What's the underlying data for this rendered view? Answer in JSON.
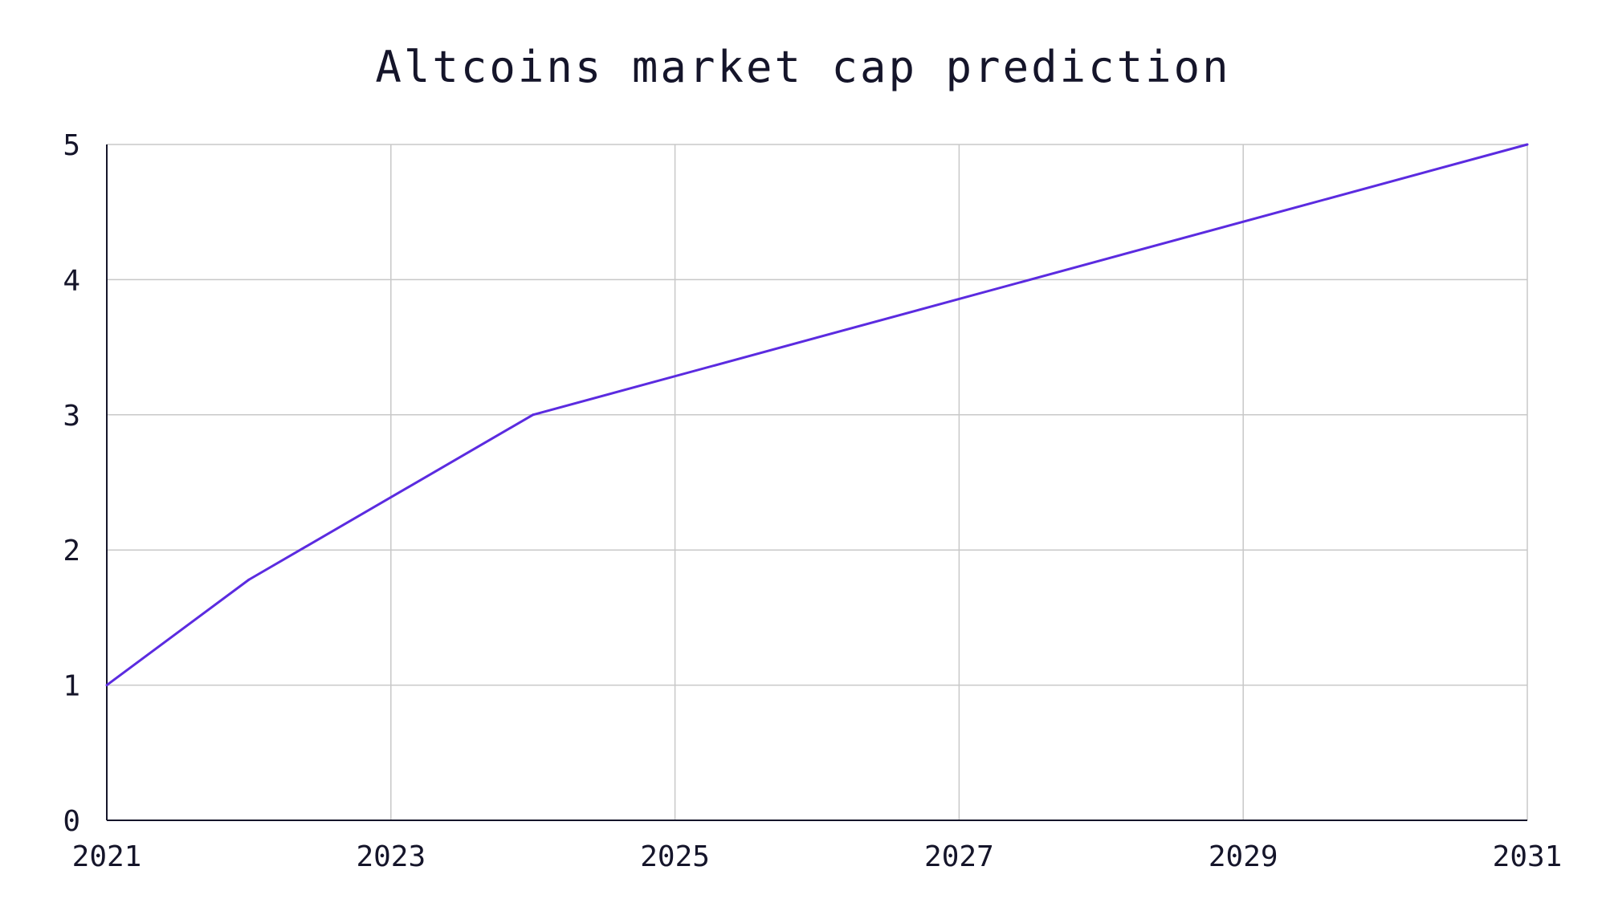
{
  "chart_data": {
    "type": "line",
    "title": "Altcoins market cap prediction",
    "xlabel": "",
    "ylabel": "",
    "x": [
      2021,
      2022,
      2024,
      2031
    ],
    "series": [
      {
        "values": [
          1.0,
          1.78,
          3.0,
          5.0
        ],
        "color": "#5b2be0"
      }
    ],
    "xlim": [
      2021,
      2031
    ],
    "ylim": [
      0,
      5
    ],
    "x_ticks": [
      2021,
      2023,
      2025,
      2027,
      2029,
      2031
    ],
    "y_ticks": [
      0,
      1,
      2,
      3,
      4,
      5
    ],
    "grid": true,
    "legend": "none"
  }
}
